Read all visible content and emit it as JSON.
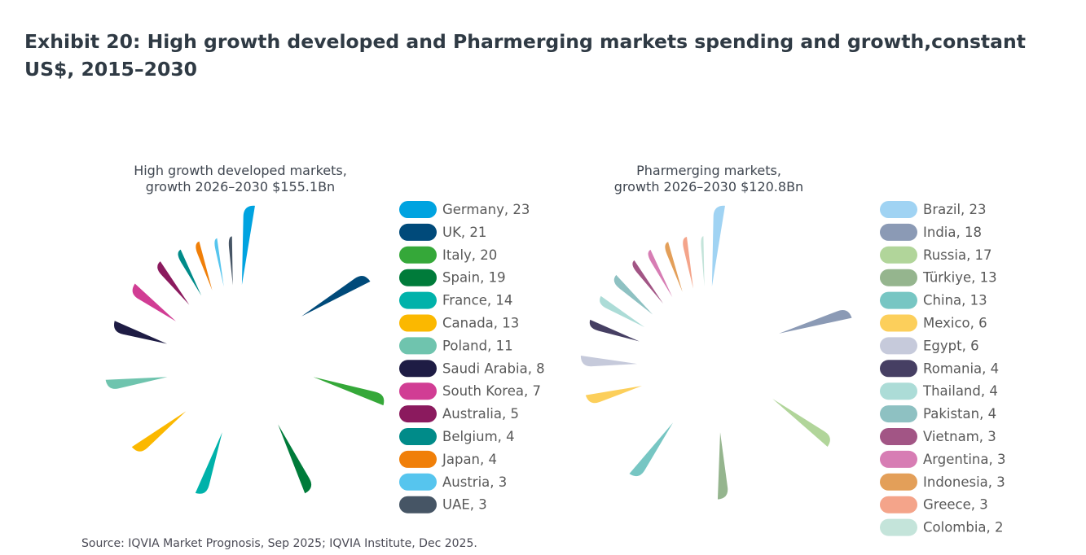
{
  "title": "Exhibit 20: High growth developed and Pharmerging markets spending and growth,constant US$, 2015–2030",
  "source": "Source: IQVIA Market Prognosis, Sep 2025; IQVIA Institute, Dec 2025.",
  "chart_data": [
    {
      "type": "pie",
      "variant": "rose-donut",
      "title_lines": [
        "High growth developed markets,",
        "growth 2026–2030 $155.1Bn"
      ],
      "legend_position": "right",
      "slices": [
        {
          "label": "Germany, 23",
          "name": "Germany",
          "value": 23,
          "color": "#00a3e0"
        },
        {
          "label": "UK, 21",
          "name": "UK",
          "value": 21,
          "color": "#004a7a"
        },
        {
          "label": "Italy, 20",
          "name": "Italy",
          "value": 20,
          "color": "#35a839"
        },
        {
          "label": "Spain, 19",
          "name": "Spain",
          "value": 19,
          "color": "#007b3a"
        },
        {
          "label": "France, 14",
          "name": "France",
          "value": 14,
          "color": "#00b2aa"
        },
        {
          "label": "Canada, 13",
          "name": "Canada",
          "value": 13,
          "color": "#fbb800"
        },
        {
          "label": "Poland, 11",
          "name": "Poland",
          "value": 11,
          "color": "#6fc4ae"
        },
        {
          "label": "Saudi Arabia, 8",
          "name": "Saudi Arabia",
          "value": 8,
          "color": "#1e1c44"
        },
        {
          "label": "South Korea, 7",
          "name": "South Korea",
          "value": 7,
          "color": "#d13d94"
        },
        {
          "label": "Australia, 5",
          "name": "Australia",
          "value": 5,
          "color": "#8b1a5e"
        },
        {
          "label": "Belgium, 4",
          "name": "Belgium",
          "value": 4,
          "color": "#008b89"
        },
        {
          "label": "Japan, 4",
          "name": "Japan",
          "value": 4,
          "color": "#f07f09"
        },
        {
          "label": "Austria, 3",
          "name": "Austria",
          "value": 3,
          "color": "#56c5ee"
        },
        {
          "label": "UAE, 3",
          "name": "UAE",
          "value": 3,
          "color": "#465565"
        }
      ]
    },
    {
      "type": "pie",
      "variant": "rose-donut",
      "title_lines": [
        "Pharmerging markets,",
        "growth 2026–2030 $120.8Bn"
      ],
      "legend_position": "right",
      "slices": [
        {
          "label": "Brazil, 23",
          "name": "Brazil",
          "value": 23,
          "color": "#a0d3f3"
        },
        {
          "label": "India, 18",
          "name": "India",
          "value": 18,
          "color": "#8b9ab5"
        },
        {
          "label": "Russia, 17",
          "name": "Russia",
          "value": 17,
          "color": "#b1d59a"
        },
        {
          "label": "Türkiye, 13",
          "name": "Türkiye",
          "value": 13,
          "color": "#95b58e"
        },
        {
          "label": "China, 13",
          "name": "China",
          "value": 13,
          "color": "#77c6c3"
        },
        {
          "label": "Mexico, 6",
          "name": "Mexico",
          "value": 6,
          "color": "#fccf5b"
        },
        {
          "label": "Egypt, 6",
          "name": "Egypt",
          "value": 6,
          "color": "#c6cadb"
        },
        {
          "label": "Romania, 4",
          "name": "Romania",
          "value": 4,
          "color": "#463f63"
        },
        {
          "label": "Thailand, 4",
          "name": "Thailand",
          "value": 4,
          "color": "#acdcd7"
        },
        {
          "label": "Pakistan, 4",
          "name": "Pakistan",
          "value": 4,
          "color": "#8ec1c2"
        },
        {
          "label": "Vietnam, 3",
          "name": "Vietnam",
          "value": 3,
          "color": "#a25585"
        },
        {
          "label": "Argentina, 3",
          "name": "Argentina",
          "value": 3,
          "color": "#d77db4"
        },
        {
          "label": "Indonesia, 3",
          "name": "Indonesia",
          "value": 3,
          "color": "#e39f59"
        },
        {
          "label": "Greece, 3",
          "name": "Greece",
          "value": 3,
          "color": "#f4a48a"
        },
        {
          "label": "Colombia, 2",
          "name": "Colombia",
          "value": 2,
          "color": "#c4e4da"
        }
      ]
    }
  ]
}
